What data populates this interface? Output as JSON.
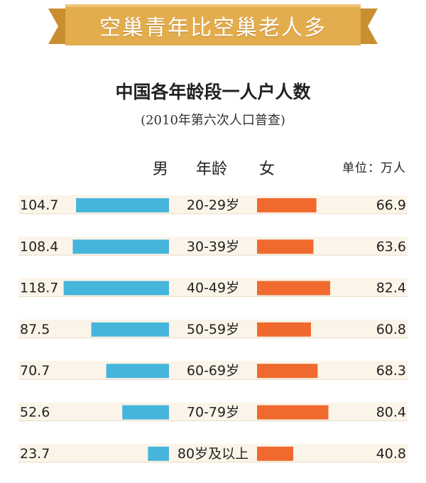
{
  "banner": {
    "title": "空巢青年比空巢老人多"
  },
  "chart_data": {
    "type": "bar",
    "title": "中国各年龄段一人户人数",
    "subtitle": "(2010年第六次人口普查)",
    "header": {
      "male": "男",
      "age": "年龄",
      "female": "女",
      "unit": "单位：万人"
    },
    "categories": [
      "20-29岁",
      "30-39岁",
      "40-49岁",
      "50-59岁",
      "60-69岁",
      "70-79岁",
      "80岁及以上"
    ],
    "series": [
      {
        "name": "男",
        "values": [
          104.7,
          108.4,
          118.7,
          87.5,
          70.7,
          52.6,
          23.7
        ]
      },
      {
        "name": "女",
        "values": [
          66.9,
          63.6,
          82.4,
          60.8,
          68.3,
          80.4,
          40.8
        ]
      }
    ],
    "colors": {
      "male": "#45b5dc",
      "female": "#f06a2e",
      "row_bg": "#fbf4e8",
      "banner": "#e3ac4c"
    }
  }
}
